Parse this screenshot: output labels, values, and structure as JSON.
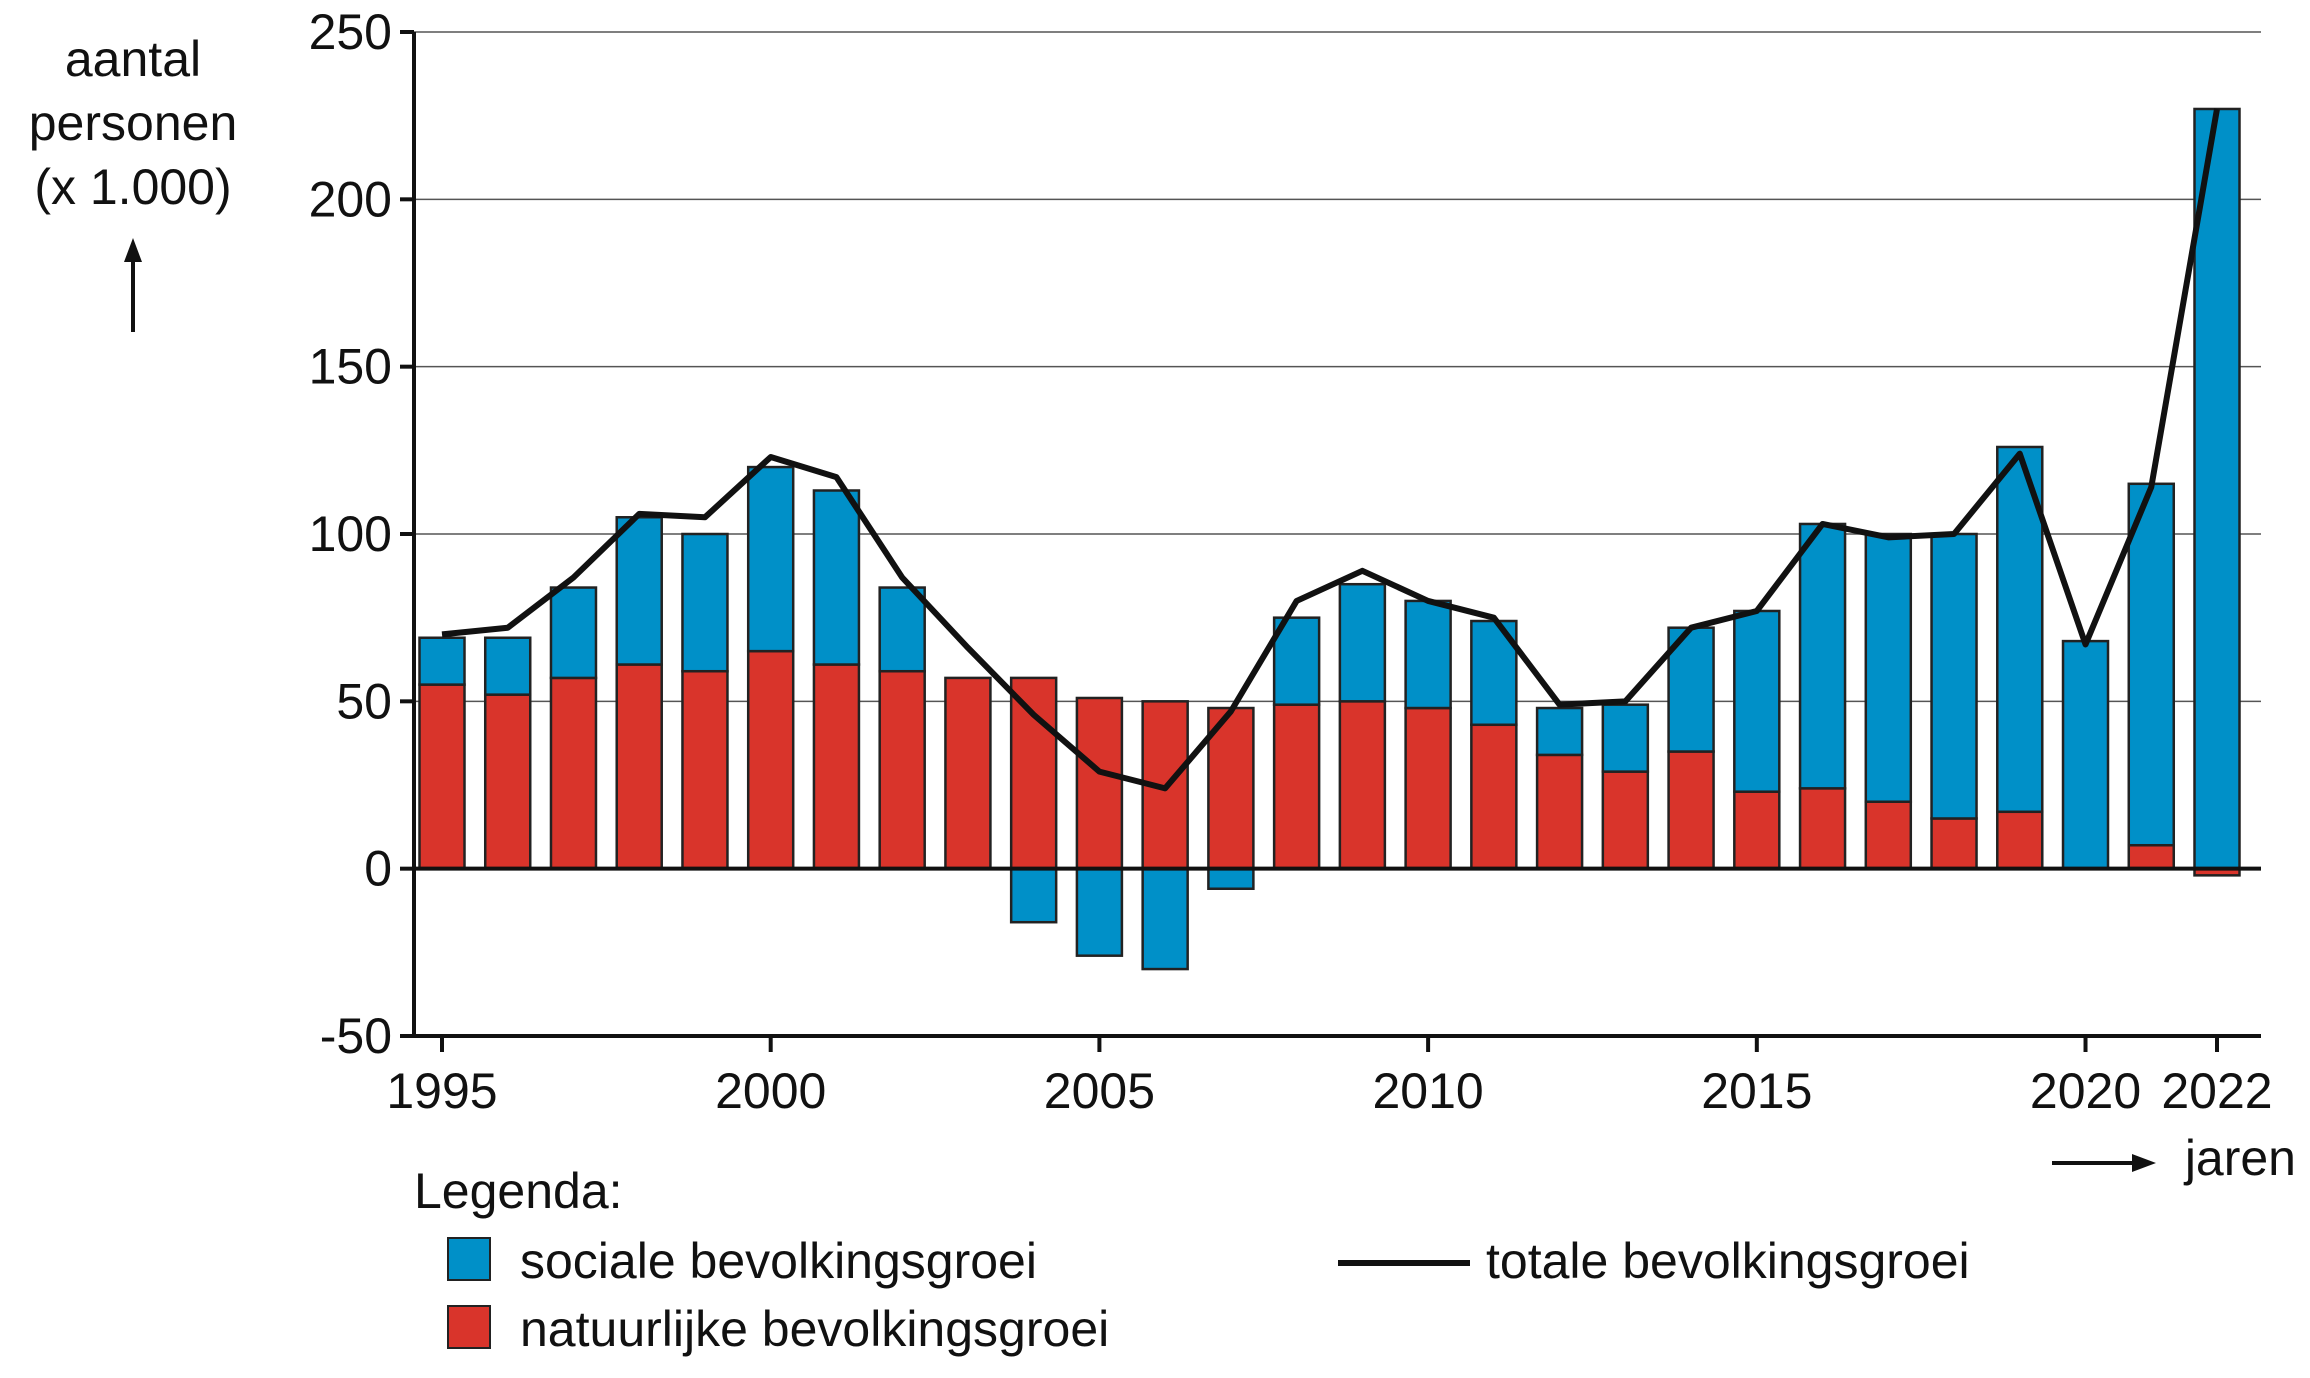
{
  "chart_data": {
    "type": "bar",
    "stacked": true,
    "ylabel": [
      "aantal",
      "personen",
      "(x 1.000)"
    ],
    "xlabel": "jaren",
    "ylim": [
      -50,
      250
    ],
    "yticks": [
      -50,
      0,
      50,
      100,
      150,
      200,
      250
    ],
    "xtick_labels": [
      "1995",
      "2000",
      "2005",
      "2010",
      "2015",
      "2020",
      "2022"
    ],
    "grid": true,
    "categories": [
      1995,
      1996,
      1997,
      1998,
      1999,
      2000,
      2001,
      2002,
      2003,
      2004,
      2005,
      2006,
      2007,
      2008,
      2009,
      2010,
      2011,
      2012,
      2013,
      2014,
      2015,
      2016,
      2017,
      2018,
      2019,
      2020,
      2021,
      2022
    ],
    "series": [
      {
        "name": "natuurlijke bevolkingsgroei",
        "type": "bar",
        "color": "#d9342b",
        "values": [
          55,
          52,
          57,
          61,
          59,
          65,
          61,
          59,
          57,
          57,
          51,
          50,
          48,
          49,
          50,
          48,
          43,
          34,
          29,
          35,
          23,
          24,
          20,
          15,
          17,
          0,
          7,
          -2
        ]
      },
      {
        "name": "sociale bevolkingsgroei",
        "type": "bar",
        "color": "#0090c8",
        "values": [
          14,
          17,
          27,
          44,
          41,
          55,
          52,
          25,
          0,
          -16,
          -26,
          -30,
          -6,
          26,
          35,
          32,
          31,
          14,
          20,
          37,
          54,
          79,
          80,
          85,
          109,
          68,
          108,
          227
        ]
      },
      {
        "name": "totale bevolkingsgroei",
        "type": "line",
        "color": "#111111",
        "values": [
          70,
          72,
          87,
          106,
          105,
          123,
          117,
          87,
          66,
          46,
          29,
          24,
          47,
          80,
          89,
          80,
          75,
          49,
          50,
          72,
          77,
          103,
          99,
          100,
          124,
          67,
          114,
          227
        ]
      }
    ],
    "legend": {
      "title": "Legenda:",
      "placement": "bottom"
    }
  }
}
